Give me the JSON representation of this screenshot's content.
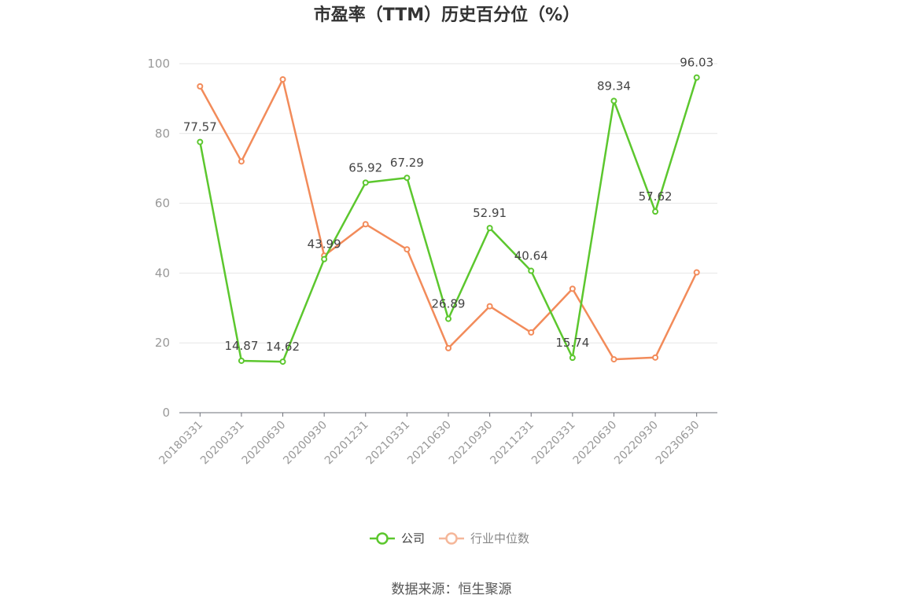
{
  "chart_data": {
    "type": "line",
    "title": "市盈率（TTM）历史百分位（%）",
    "categories": [
      "20180331",
      "20200331",
      "20200630",
      "20200930",
      "20201231",
      "20210331",
      "20210630",
      "20210930",
      "20211231",
      "20220331",
      "20220630",
      "20220930",
      "20230630"
    ],
    "series": [
      {
        "name": "公司",
        "color": "#5cc72e",
        "values": [
          77.57,
          14.87,
          14.62,
          43.99,
          65.92,
          67.29,
          26.89,
          52.91,
          40.64,
          15.74,
          89.34,
          57.62,
          96.03
        ],
        "labels": [
          "77.57",
          "14.87",
          "14.62",
          "43.99",
          "65.92",
          "67.29",
          "26.89",
          "52.91",
          "40.64",
          "15.74",
          "89.34",
          "57.62",
          "96.03"
        ]
      },
      {
        "name": "行业中位数",
        "color": "#f28b5a",
        "values": [
          93.5,
          72.0,
          95.5,
          45.0,
          54.0,
          46.8,
          18.5,
          30.5,
          23.0,
          35.5,
          15.3,
          15.8,
          40.2
        ]
      }
    ],
    "ylim": [
      0,
      100
    ],
    "yticks": [
      "0",
      "20",
      "40",
      "60",
      "80",
      "100"
    ],
    "grid": true,
    "legend_position": "bottom"
  },
  "source": "数据来源：恒生聚源"
}
